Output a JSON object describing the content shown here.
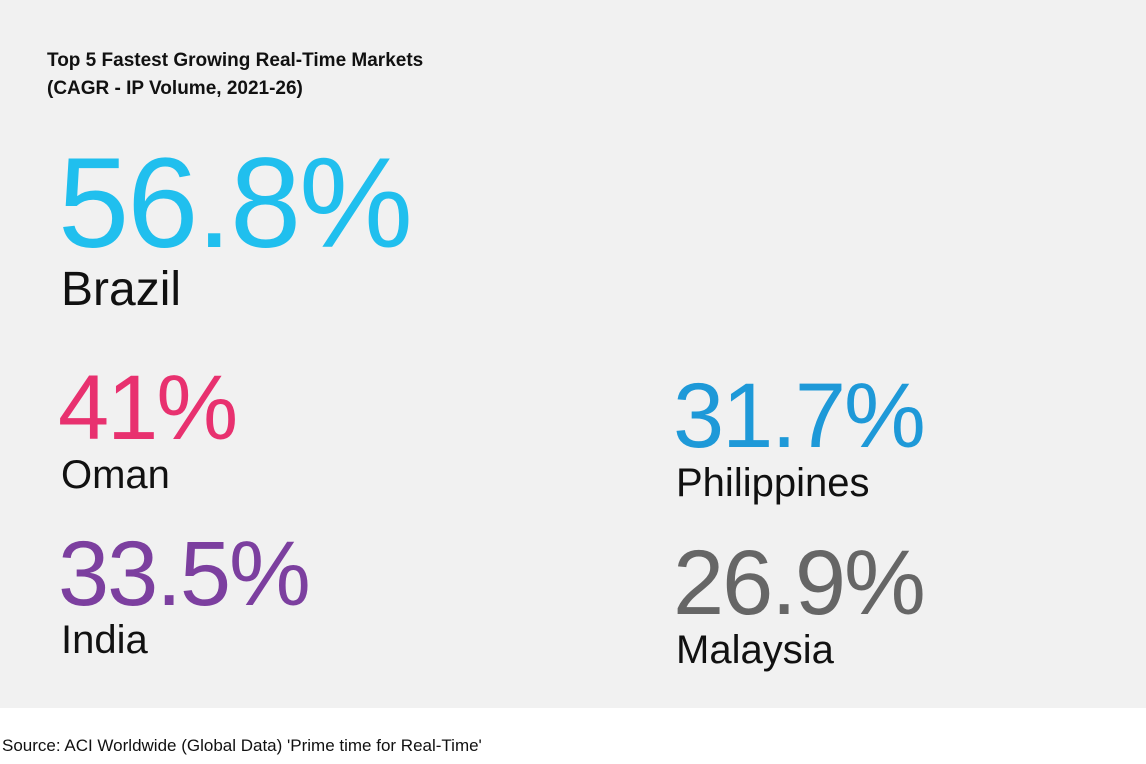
{
  "header": {
    "title": [
      "Top 5 Fastest Growing Real-Time Markets",
      "(CAGR - IP Volume, 2021-26)"
    ]
  },
  "stats": [
    {
      "value": "56.8%",
      "label": "Brazil"
    },
    {
      "value": "41%",
      "label": "Oman"
    },
    {
      "value": "33.5%",
      "label": "India"
    },
    {
      "value": "31.7%",
      "label": "Philippines"
    },
    {
      "value": "26.9%",
      "label": "Malaysia"
    }
  ],
  "source": "Source: ACI Worldwide (Global Data) 'Prime time for Real-Time'"
}
